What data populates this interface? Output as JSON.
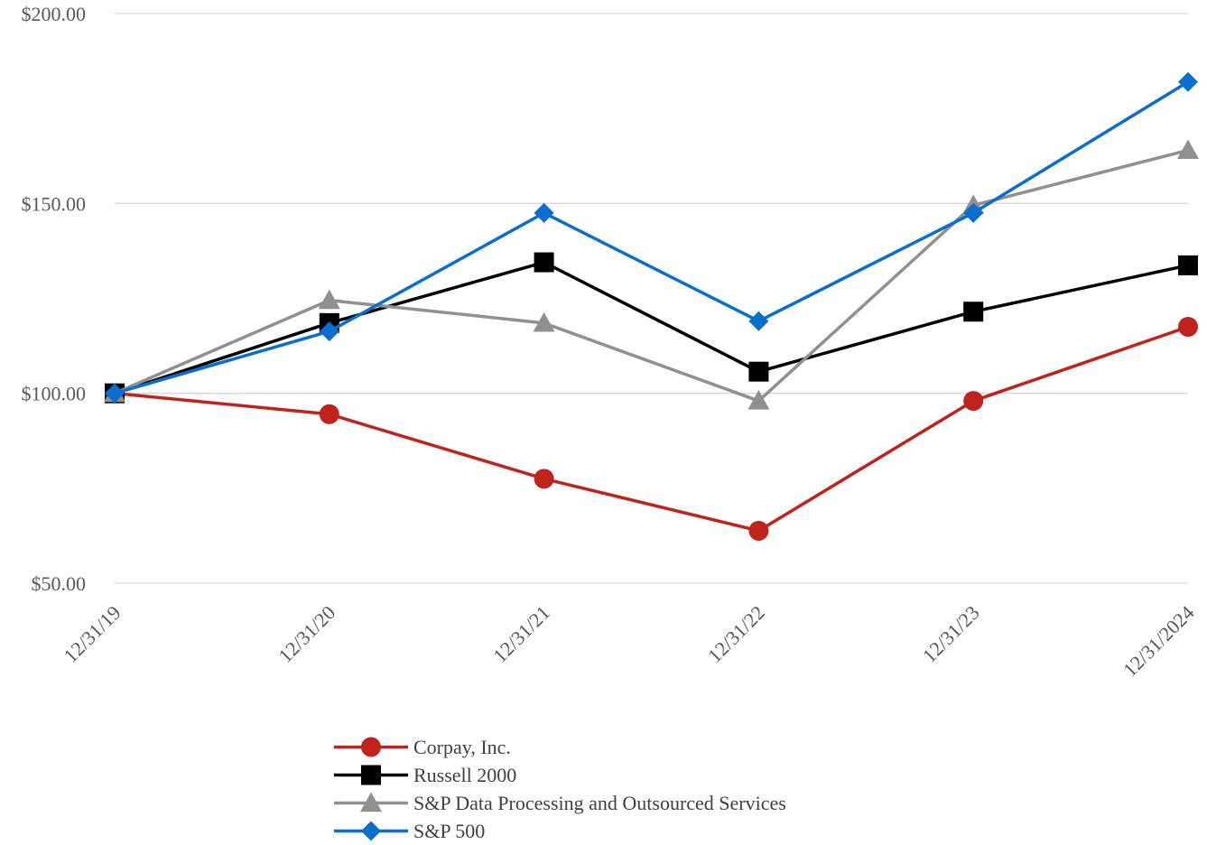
{
  "chart_data": {
    "type": "line",
    "categories": [
      "12/31/19",
      "12/31/20",
      "12/31/21",
      "12/31/22",
      "12/31/23",
      "12/31/2024"
    ],
    "y_tick_labels": [
      "$50.00",
      "$100.00",
      "$150.00",
      "$200.00"
    ],
    "y_ticks": [
      50,
      100,
      150,
      200
    ],
    "ylim": [
      50,
      200
    ],
    "grid": true,
    "legend_position": "bottom",
    "series": [
      {
        "name": "Corpay, Inc.",
        "color": "#C0231B",
        "marker": "circle",
        "values": [
          100,
          94.5,
          77.5,
          63.8,
          98,
          117.5
        ]
      },
      {
        "name": "Russell 2000",
        "color": "#000000",
        "marker": "square",
        "values": [
          100,
          118.5,
          134.5,
          105.7,
          121.5,
          133.7
        ]
      },
      {
        "name": "S&P Data Processing and Outsourced Services",
        "color": "#909090",
        "marker": "triangle",
        "values": [
          100,
          124.5,
          118.5,
          98,
          149.5,
          164
        ]
      },
      {
        "name": "S&P 500",
        "color": "#0A6ECF",
        "marker": "diamond",
        "values": [
          100,
          116.3,
          147.5,
          119,
          147.5,
          182
        ]
      }
    ]
  }
}
